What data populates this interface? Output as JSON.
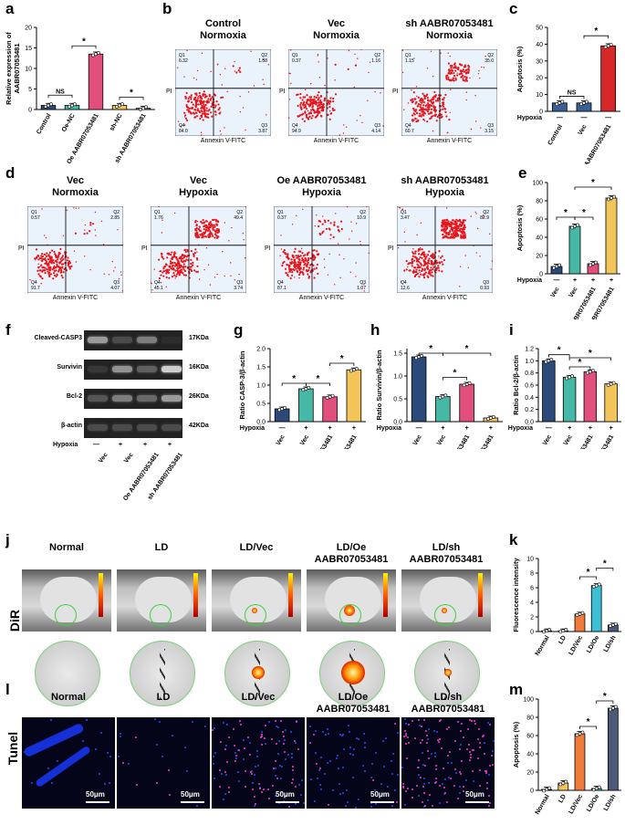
{
  "panels": {
    "a": "a",
    "b": "b",
    "c": "c",
    "d": "d",
    "e": "e",
    "f": "f",
    "g": "g",
    "h": "h",
    "i": "i",
    "j": "j",
    "k": "k",
    "l": "l",
    "m": "m"
  },
  "colors": {
    "navy": "#2b4a7a",
    "teal": "#46b8a6",
    "pink": "#e0507a",
    "yellow": "#f3c45a",
    "gray": "#888888",
    "red": "#d62828",
    "orange": "#f07a3a",
    "cyan": "#3bbfd4",
    "slate": "#4a5a78",
    "blue_bar": "#3a5f95"
  },
  "flow_b": [
    {
      "title1": "Control",
      "title2": "Normoxia",
      "q1": "6.32",
      "q2": "1.88",
      "q3": "3.87",
      "q4": "84.0"
    },
    {
      "title1": "Vec",
      "title2": "Normoxia",
      "q1": "0.37",
      "q2": "1.16",
      "q3": "4.14",
      "q4": "94.9"
    },
    {
      "title1": "sh AABR07053481",
      "title2": "Normoxia",
      "q1": "1.15",
      "q2": "35.0",
      "q3": "3.15",
      "q4": "60.7"
    }
  ],
  "flow_d": [
    {
      "title1": "Vec",
      "title2": "Normoxia",
      "q1": "0.57",
      "q2": "2.85",
      "q3": "4.07",
      "q4": "91.7"
    },
    {
      "title1": "Vec",
      "title2": "Hypoxia",
      "q1": "1.76",
      "q2": "49.4",
      "q3": "3.74",
      "q4": "45.1"
    },
    {
      "title1": "Oe AABR07053481",
      "title2": "Hypoxia",
      "q1": "0.37",
      "q2": "10.9",
      "q3": "1.07",
      "q4": "87.1"
    },
    {
      "title1": "sh AABR07053481",
      "title2": "Hypoxia",
      "q1": "3.47",
      "q2": "82.9",
      "q3": "0.93",
      "q4": "12.6"
    }
  ],
  "flow_axis": {
    "x": "Annexin V-FITC",
    "y": "PI",
    "q1": "Q1",
    "q2": "Q2",
    "q3": "Q3",
    "q4": "Q4"
  },
  "western": {
    "rows": [
      {
        "name": "Cleaved-CASP3",
        "kda": "17KDa"
      },
      {
        "name": "Survivin",
        "kda": "16KDa"
      },
      {
        "name": "Bcl-2",
        "kda": "26KDa"
      },
      {
        "name": "β-actin",
        "kda": "42KDa"
      }
    ],
    "hypoxia_label": "Hypoxia",
    "hypoxia_signs": [
      "—",
      "+",
      "+",
      "+"
    ],
    "lanes": [
      "Vec",
      "Vec",
      "Oe AABR07053481",
      "sh AABR07053481"
    ]
  },
  "imaging_j": {
    "side_label": "DiR",
    "titles": [
      [
        "Normal",
        ""
      ],
      [
        "LD",
        ""
      ],
      [
        "LD/Vec",
        ""
      ],
      [
        "LD/Oe",
        "AABR07053481"
      ],
      [
        "LD/sh",
        "AABR07053481"
      ]
    ]
  },
  "tunel_l": {
    "side_label": "Tunel",
    "titles": [
      [
        "Normal",
        ""
      ],
      [
        "LD",
        ""
      ],
      [
        "LD/Vec",
        ""
      ],
      [
        "LD/Oe",
        "AABR07053481"
      ],
      [
        "LD/sh",
        "AABR07053481"
      ]
    ],
    "scale": "50μm"
  },
  "chart_data": [
    {
      "id": "a",
      "type": "bar",
      "title": "",
      "ylabel": "Relative expression of AABR07053481",
      "categories": [
        "Control",
        "Oe-NC",
        "Oe AABR07053481",
        "sh-NC",
        "sh AABR07053481"
      ],
      "values": [
        1.0,
        1.0,
        13.5,
        1.0,
        0.3
      ],
      "ylim": [
        0,
        20
      ],
      "yticks": [
        "0",
        "5",
        "10",
        "15",
        "20"
      ],
      "significance": [
        "NS",
        "*",
        "*"
      ]
    },
    {
      "id": "c",
      "type": "bar",
      "ylabel": "Apoptosis (%)",
      "categories": [
        "Control",
        "Vec",
        "sh AABR07053481"
      ],
      "values": [
        5,
        5,
        39
      ],
      "ylim": [
        0,
        50
      ],
      "yticks": [
        "0",
        "10",
        "20",
        "30",
        "40",
        "50"
      ],
      "hypoxia": [
        "—",
        "—",
        "—"
      ],
      "significance": [
        "NS",
        "*"
      ]
    },
    {
      "id": "e",
      "type": "bar",
      "ylabel": "Apoptosis (%)",
      "categories": [
        "Vec",
        "Vec",
        "Oe AABR07053481",
        "sh AABR07053481"
      ],
      "values": [
        8,
        52,
        11,
        83
      ],
      "ylim": [
        0,
        100
      ],
      "yticks": [
        "0",
        "20",
        "40",
        "60",
        "80",
        "100"
      ],
      "hypoxia": [
        "—",
        "+",
        "+",
        "+"
      ],
      "significance": [
        "*",
        "*",
        "*"
      ]
    },
    {
      "id": "g",
      "type": "bar",
      "ylabel": "Ratio CASP-3/β-actin",
      "categories": [
        "Vec",
        "Vec",
        "Oe AABR07053481",
        "sh AABR07053481"
      ],
      "values": [
        0.35,
        0.9,
        0.68,
        1.42
      ],
      "ylim": [
        0,
        2.0
      ],
      "yticks": [
        "0.0",
        "0.5",
        "1.0",
        "1.5",
        "2.0"
      ],
      "hypoxia": [
        "—",
        "+",
        "+",
        "+"
      ],
      "significance": [
        "*",
        "*",
        "*"
      ]
    },
    {
      "id": "h",
      "type": "bar",
      "ylabel": "Ratio Survivin/β-actin",
      "categories": [
        "Vec",
        "Vec",
        "Oe AABR07053481",
        "sh AABR07053481"
      ],
      "values": [
        1.42,
        0.55,
        0.82,
        0.08
      ],
      "ylim": [
        0,
        1.6
      ],
      "yticks": [
        "0.0",
        "0.5",
        "1.0",
        "1.5"
      ],
      "hypoxia": [
        "—",
        "+",
        "+",
        "+"
      ],
      "significance": [
        "*",
        "*",
        "*"
      ]
    },
    {
      "id": "i",
      "type": "bar",
      "ylabel": "Ratio Bcl-2/β-actin",
      "categories": [
        "Vec",
        "Vec",
        "Oe AABR07053481",
        "sh AABR07053481"
      ],
      "values": [
        1.0,
        0.73,
        0.82,
        0.62
      ],
      "ylim": [
        0,
        1.2
      ],
      "yticks": [
        "0.0",
        "0.2",
        "0.4",
        "0.6",
        "0.8",
        "1.0",
        "1.2"
      ],
      "hypoxia": [
        "—",
        "+",
        "+",
        "+"
      ],
      "significance": [
        "*",
        "*",
        "*"
      ]
    },
    {
      "id": "k",
      "type": "bar",
      "ylabel": "Fluorescence intensity",
      "categories": [
        "Normal",
        "LD",
        "LD/Vec",
        "LD/Oe",
        "LD/sh"
      ],
      "values": [
        0.1,
        0.1,
        2.4,
        6.3,
        0.9
      ],
      "ylim": [
        0,
        10
      ],
      "yticks": [
        "0",
        "2",
        "4",
        "6",
        "8",
        "10"
      ],
      "significance": [
        "*",
        "*"
      ]
    },
    {
      "id": "m",
      "type": "bar",
      "ylabel": "Apoptosis (%)",
      "categories": [
        "Normal",
        "LD",
        "LD/Vec",
        "LD/Oe",
        "LD/sh"
      ],
      "values": [
        1,
        8,
        62,
        2,
        90
      ],
      "ylim": [
        0,
        100
      ],
      "yticks": [
        "0",
        "20",
        "40",
        "60",
        "80",
        "100"
      ],
      "significance": [
        "*",
        "*"
      ]
    }
  ]
}
